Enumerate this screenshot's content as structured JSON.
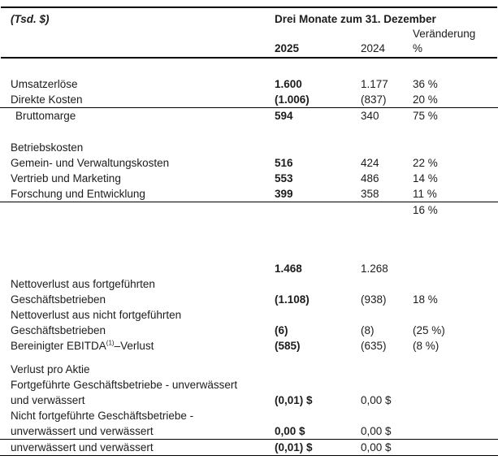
{
  "header": {
    "unit_label": "(Tsd. $)",
    "period_title": "Drei Monate zum 31. Dezember",
    "change_label": "Veränderung",
    "year_current": "2025",
    "year_prior": "2024",
    "percent_symbol": "%"
  },
  "rows": [
    {
      "label": "Umsatzerlöse",
      "v2025": "1.600",
      "v2024": "1.177",
      "pct": "36 %"
    },
    {
      "label": "Direkte Kosten",
      "v2025": "(1.006)",
      "v2024": "(837)",
      "pct": "20 %",
      "border_bottom": true
    },
    {
      "label": "Bruttomarge",
      "indent": true,
      "v2025": "594",
      "v2024": "340",
      "pct": "75 %"
    },
    {
      "label": "Betriebskosten",
      "gap_before": 20
    },
    {
      "label": "Gemein- und Verwaltungskosten",
      "v2025": "516",
      "v2024": "424",
      "pct": "22 %"
    },
    {
      "label": "Vertrieb und Marketing",
      "v2025": "553",
      "v2024": "486",
      "pct": "14 %"
    },
    {
      "label": "Forschung und Entwicklung",
      "v2025": "399",
      "v2024": "358",
      "pct": "11 %",
      "border_bottom": true
    },
    {
      "label": "",
      "pct": "16 %"
    },
    {
      "label": "",
      "v2025": "1.468",
      "v2024": "1.268",
      "gap_before": 53
    },
    {
      "label": [
        "Nettoverlust aus fortgeführten",
        "Geschäftsbetrieben"
      ],
      "v2025": "(1.108)",
      "v2024": "(938)",
      "pct": "18 %"
    },
    {
      "label": [
        "Nettoverlust aus nicht fortgeführten",
        "Geschäftsbetrieben"
      ],
      "v2025": "(6)",
      "v2024": "(8)",
      "pct": "(25 %)"
    },
    {
      "label": "Bereinigter EBITDA",
      "label_sup": "(1)",
      "label_post": "–Verlust",
      "v2025": "(585)",
      "v2024": "(635)",
      "pct": "(8 %)"
    },
    {
      "label": "Verlust pro Aktie",
      "gap_before": 10
    },
    {
      "label": [
        "Fortgeführte Geschäftsbetriebe - unverwässert",
        "und verwässert"
      ],
      "v2025": "(0,01) $",
      "v2024": "0,00 $"
    },
    {
      "label": [
        "Nicht fortgeführte Geschäftsbetriebe -",
        "unverwässert und verwässert"
      ],
      "v2025": "0,00 $",
      "v2024": "0,00 $",
      "border_bottom": true
    },
    {
      "label": "unverwässert und verwässert",
      "v2025": "(0,01) $",
      "v2024": "0,00 $",
      "border_bottom": true
    }
  ],
  "colors": {
    "text": "#1c1c1c",
    "rule": "#000000",
    "background": "#ffffff"
  }
}
